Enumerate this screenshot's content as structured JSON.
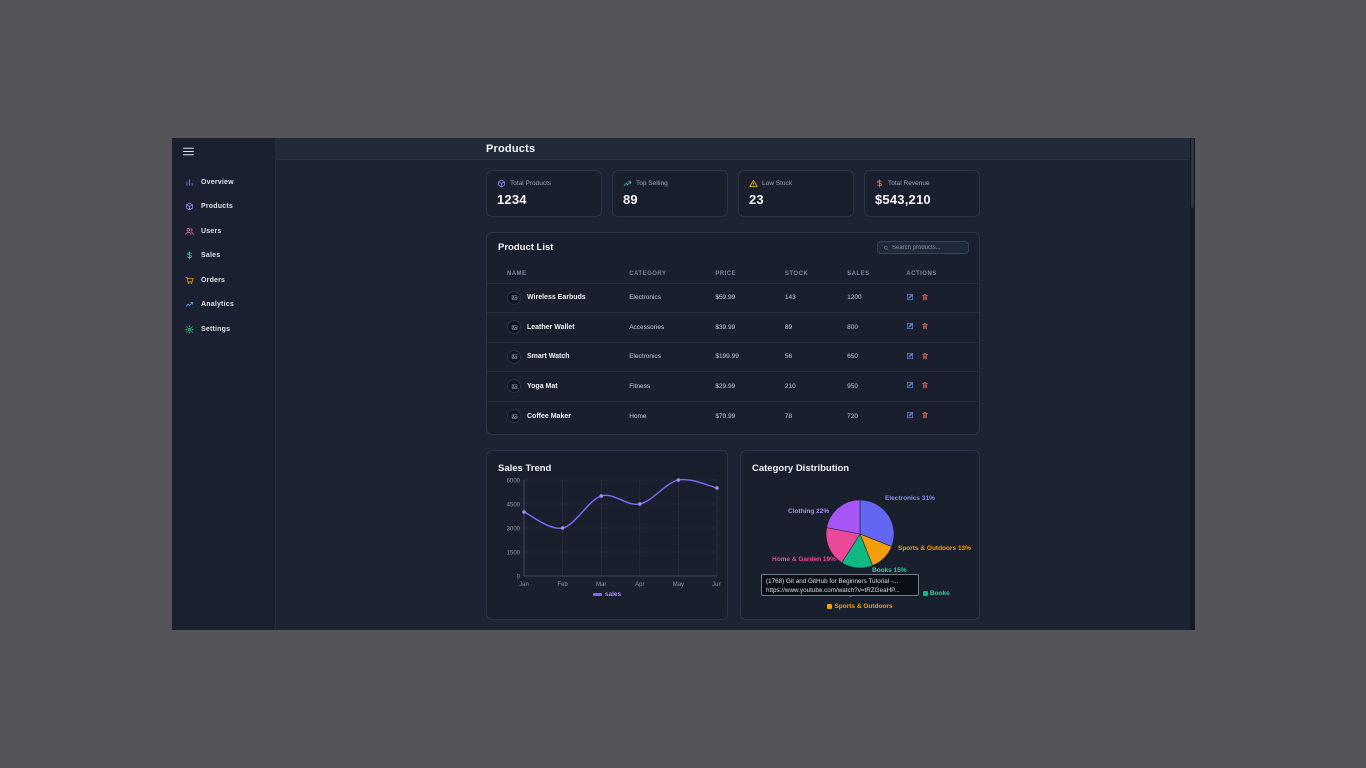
{
  "header": {
    "title": "Products"
  },
  "sidebar": {
    "items": [
      {
        "label": "Overview",
        "icon": "bar-chart-icon",
        "color": "#818cf8"
      },
      {
        "label": "Products",
        "icon": "package-icon",
        "color": "#a78bfa"
      },
      {
        "label": "Users",
        "icon": "users-icon",
        "color": "#f472b6"
      },
      {
        "label": "Sales",
        "icon": "dollar-icon",
        "color": "#34d399"
      },
      {
        "label": "Orders",
        "icon": "cart-icon",
        "color": "#f59e0b"
      },
      {
        "label": "Analytics",
        "icon": "trend-icon",
        "color": "#60a5fa"
      },
      {
        "label": "Settings",
        "icon": "gear-icon",
        "color": "#4ade80"
      }
    ]
  },
  "stats": [
    {
      "label": "Total Products",
      "value": "1234",
      "icon": "package-icon",
      "color": "#818cf8"
    },
    {
      "label": "Top Selling",
      "value": "89",
      "icon": "trending-up-icon",
      "color": "#34d399"
    },
    {
      "label": "Low Stock",
      "value": "23",
      "icon": "warning-icon",
      "color": "#fbbf24"
    },
    {
      "label": "Total Revenue",
      "value": "$543,210",
      "icon": "dollar-icon",
      "color": "#f87171"
    }
  ],
  "product_list": {
    "title": "Product List",
    "search_placeholder": "Search products...",
    "columns": [
      "Name",
      "Category",
      "Price",
      "Stock",
      "Sales",
      "Actions"
    ],
    "actions": {
      "edit_color": "#6f8ef2",
      "delete_color": "#e06565"
    },
    "rows": [
      {
        "name": "Wireless Earbuds",
        "category": "Electronics",
        "price": "$59.99",
        "stock": "143",
        "sales": "1200"
      },
      {
        "name": "Leather Wallet",
        "category": "Accessories",
        "price": "$39.99",
        "stock": "89",
        "sales": "800"
      },
      {
        "name": "Smart Watch",
        "category": "Electronics",
        "price": "$199.99",
        "stock": "56",
        "sales": "650"
      },
      {
        "name": "Yoga Mat",
        "category": "Fitness",
        "price": "$29.99",
        "stock": "210",
        "sales": "950"
      },
      {
        "name": "Coffee Maker",
        "category": "Home",
        "price": "$79.99",
        "stock": "78",
        "sales": "720"
      }
    ]
  },
  "chart_data": [
    {
      "type": "line",
      "title": "Sales Trend",
      "x": [
        "Jan",
        "Feb",
        "Mar",
        "Apr",
        "May",
        "Jun"
      ],
      "series": [
        {
          "name": "sales",
          "values": [
            4000,
            3000,
            5000,
            4500,
            6000,
            5500
          ],
          "color": "#7c6cf5",
          "point_color": "#a78bfa"
        }
      ],
      "xlabel": "",
      "ylabel": "",
      "ylim": [
        0,
        6000
      ],
      "yticks": [
        0,
        1500,
        3000,
        4500,
        6000
      ],
      "grid": true,
      "legend_position": "bottom"
    },
    {
      "type": "pie",
      "title": "Category Distribution",
      "slices": [
        {
          "label": "Electronics",
          "pct": 31,
          "color": "#6366f1",
          "label_color": "#818cf8"
        },
        {
          "label": "Sports & Outdoors",
          "pct": 13,
          "color": "#f59e0b",
          "label_color": "#f59e0b"
        },
        {
          "label": "Books",
          "pct": 15,
          "color": "#10b981",
          "label_color": "#34d399"
        },
        {
          "label": "Home & Garden",
          "pct": 19,
          "color": "#ec4899",
          "label_color": "#ec4899"
        },
        {
          "label": "Clothing",
          "pct": 22,
          "color": "#a855f7",
          "label_color": "#b18cf8"
        }
      ],
      "legend_position": "bottom",
      "legend_rows": [
        [
          "Electronics",
          "Clothing",
          "Home & Garden",
          "Books"
        ],
        [
          "Sports & Outdoors"
        ]
      ]
    }
  ],
  "link_tooltip": {
    "line1": "(1768) Git and GitHub for Beginners Tutorial -...",
    "line2": "https://www.youtube.com/watch?v=tRZGeaHP..."
  }
}
